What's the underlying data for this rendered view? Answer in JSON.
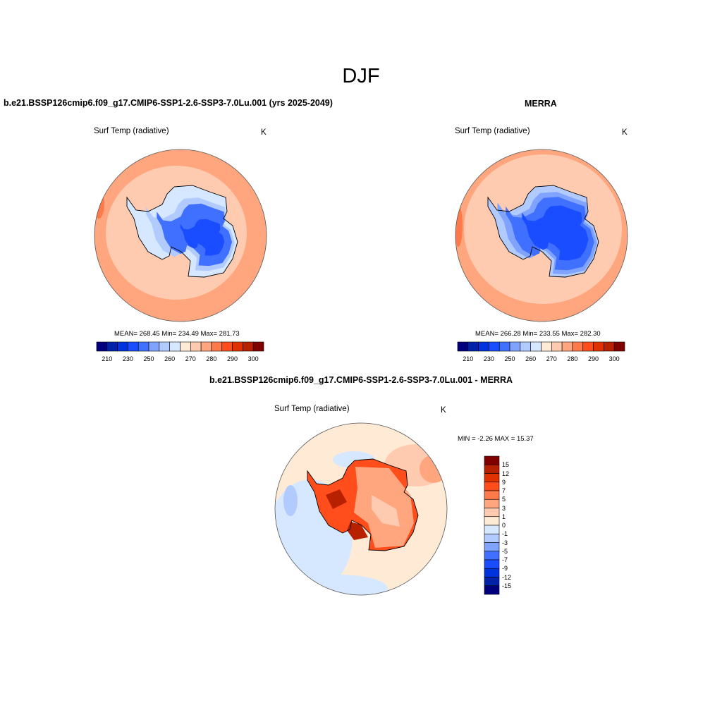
{
  "figure_title": "DJF",
  "colors": [
    "#00007f",
    "#0022a8",
    "#0033dd",
    "#1a4dff",
    "#4070ff",
    "#80a3ff",
    "#b2cbff",
    "#d6e8ff",
    "#ffead6",
    "#ffcbb0",
    "#ffa67e",
    "#ff7a4a",
    "#ff4d1c",
    "#e03200",
    "#b82100",
    "#800000"
  ],
  "chart_data": [
    {
      "type": "contour-map",
      "projection": "south-polar-stereographic",
      "title": "b.e21.BSSP126cmip6.f09_g17.CMIP6-SSP1-2.6-SSP3-7.0Lu.001 (yrs 2025-2049)",
      "variable": "Surf Temp (radiative)",
      "units": "K",
      "stats": "MEAN= 268.45  Min= 234.49  Max= 281.73",
      "levels": [
        210,
        220,
        230,
        240,
        250,
        255,
        260,
        265,
        270,
        275,
        280,
        285,
        290,
        295,
        300
      ],
      "tick_labels": [
        "210",
        "230",
        "250",
        "260",
        "270",
        "280",
        "290",
        "300"
      ]
    },
    {
      "type": "contour-map",
      "projection": "south-polar-stereographic",
      "title": "MERRA",
      "variable": "Surf Temp (radiative)",
      "units": "K",
      "stats": "MEAN= 266.28  Min= 233.55  Max= 282.30",
      "levels": [
        210,
        220,
        230,
        240,
        250,
        255,
        260,
        265,
        270,
        275,
        280,
        285,
        290,
        295,
        300
      ],
      "tick_labels": [
        "210",
        "230",
        "250",
        "260",
        "270",
        "280",
        "290",
        "300"
      ]
    },
    {
      "type": "contour-map",
      "projection": "south-polar-stereographic",
      "title": "b.e21.BSSP126cmip6.f09_g17.CMIP6-SSP1-2.6-SSP3-7.0Lu.001 - MERRA",
      "variable": "Surf Temp (radiative)",
      "units": "K",
      "stats": "MIN =  -2.26 MAX =  15.37",
      "levels": [
        -15,
        -12,
        -9,
        -7,
        -5,
        -3,
        -1,
        0,
        1,
        3,
        5,
        7,
        9,
        12,
        15
      ],
      "tick_labels": [
        "15",
        "12",
        "9",
        "7",
        "5",
        "3",
        "1",
        "0",
        "-1",
        "-3",
        "-5",
        "-7",
        "-9",
        "-12",
        "-15"
      ]
    }
  ]
}
